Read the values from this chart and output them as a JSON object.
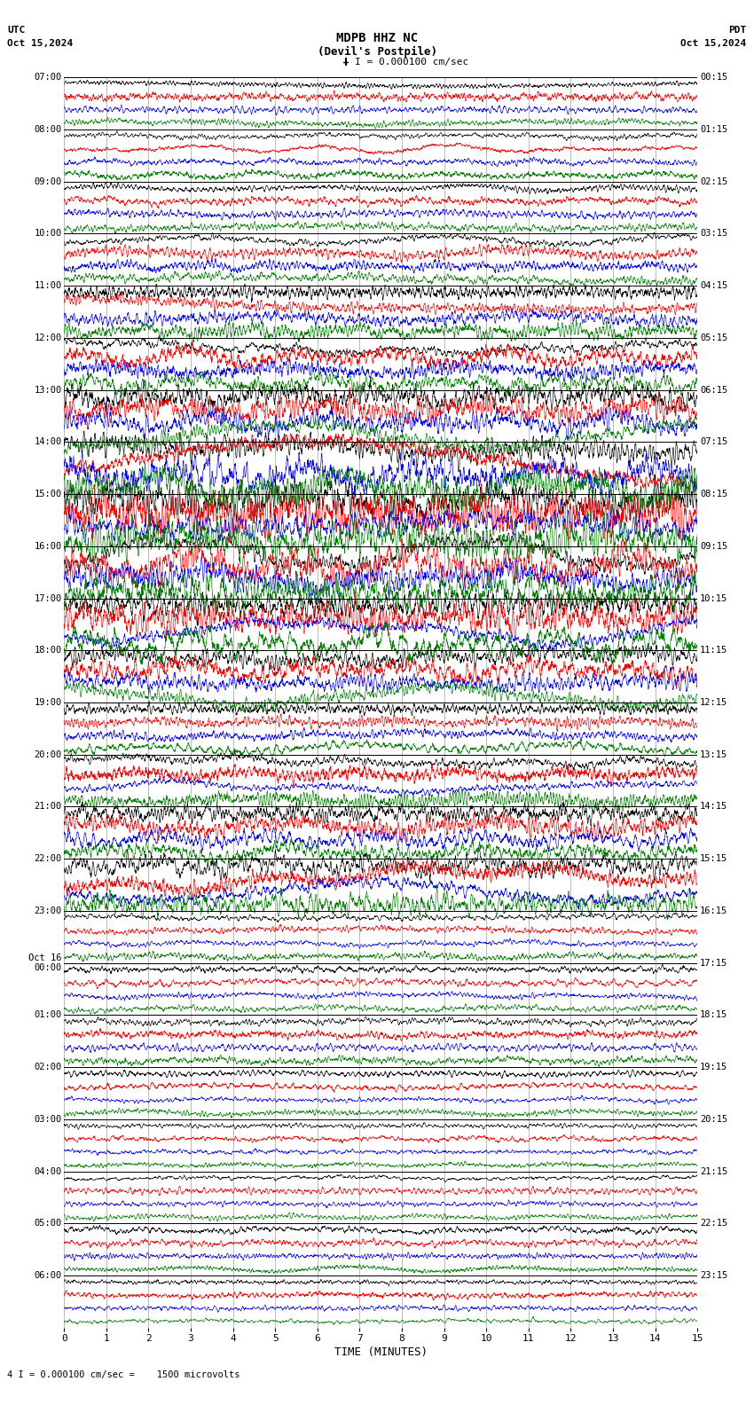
{
  "title_line1": "MDPB HHZ NC",
  "title_line2": "(Devil's Postpile)",
  "scale_label": "I = 0.000100 cm/sec",
  "left_label": "UTC",
  "left_date": "Oct 15,2024",
  "right_label": "PDT",
  "right_date": "Oct 15,2024",
  "bottom_xlabel": "TIME (MINUTES)",
  "bottom_note": "4 I = 0.000100 cm/sec =    1500 microvolts",
  "utc_times": [
    "07:00",
    "08:00",
    "09:00",
    "10:00",
    "11:00",
    "12:00",
    "13:00",
    "14:00",
    "15:00",
    "16:00",
    "17:00",
    "18:00",
    "19:00",
    "20:00",
    "21:00",
    "22:00",
    "23:00",
    "Oct 16\n00:00",
    "01:00",
    "02:00",
    "03:00",
    "04:00",
    "05:00",
    "06:00"
  ],
  "pdt_times": [
    "00:15",
    "01:15",
    "02:15",
    "03:15",
    "04:15",
    "05:15",
    "06:15",
    "07:15",
    "08:15",
    "09:15",
    "10:15",
    "11:15",
    "12:15",
    "13:15",
    "14:15",
    "15:15",
    "16:15",
    "17:15",
    "18:15",
    "19:15",
    "20:15",
    "21:15",
    "22:15",
    "23:15"
  ],
  "n_rows": 24,
  "colors": [
    "black",
    "red",
    "blue",
    "green"
  ],
  "bg_color": "#ffffff",
  "grid_color": "#000000",
  "fig_width": 8.5,
  "fig_height": 15.84,
  "dpi": 100,
  "time_minutes": 15
}
